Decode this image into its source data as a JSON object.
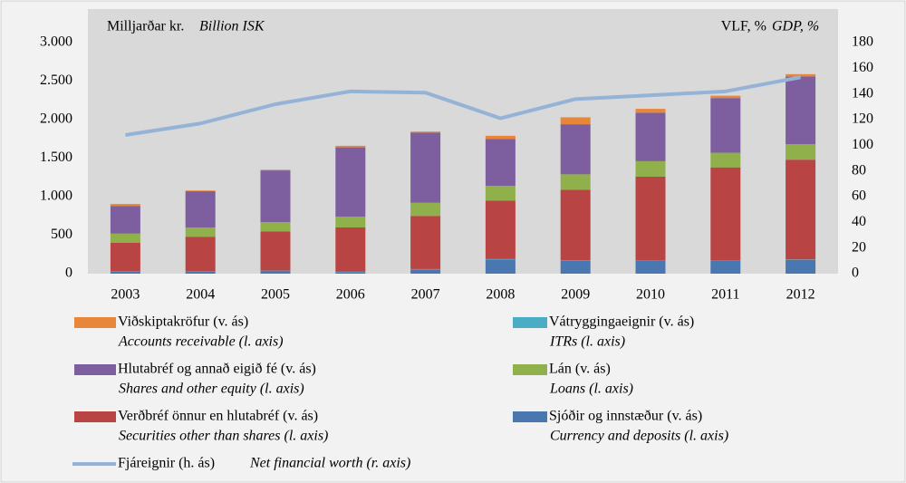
{
  "chart_data": {
    "type": "bar",
    "left_axis_label": "Milljarðar kr.",
    "left_axis_label_en": "Billion ISK",
    "right_axis_label": "VLF, %",
    "right_axis_label_en": "GDP, %",
    "categories": [
      "2003",
      "2004",
      "2005",
      "2006",
      "2007",
      "2008",
      "2009",
      "2010",
      "2011",
      "2012"
    ],
    "stacked": true,
    "series": [
      {
        "name": "Sjóðir og innstæður (v. ás)",
        "name_en": "Currency and deposits (l. axis)",
        "color": "#4a77b0",
        "values": [
          30,
          30,
          35,
          20,
          55,
          185,
          170,
          165,
          165,
          180
        ]
      },
      {
        "name": "Vátryggingaeignir (v. ás)",
        "name_en": "ITRs (l. axis)",
        "color": "#4bacc6",
        "values": [
          5,
          5,
          5,
          5,
          5,
          5,
          5,
          5,
          5,
          5
        ]
      },
      {
        "name": "Verðbréf önnur en hlutabréf (v. ás)",
        "name_en": "Securities other than shares (l. axis)",
        "color": "#b84543",
        "values": [
          365,
          445,
          510,
          575,
          690,
          760,
          915,
          1090,
          1210,
          1295
        ]
      },
      {
        "name": "Lán (v. ás)",
        "name_en": "Loans (l. axis)",
        "color": "#8fb04a",
        "values": [
          120,
          120,
          120,
          140,
          170,
          190,
          200,
          200,
          190,
          200
        ]
      },
      {
        "name": "Hlutabréf og annað eigið fé (v. ás)",
        "name_en": "Shares and other equity (l. axis)",
        "color": "#7d5fa0",
        "values": [
          360,
          470,
          670,
          900,
          910,
          610,
          650,
          630,
          710,
          880
        ]
      },
      {
        "name": "Viðskiptakröfur (v. ás)",
        "name_en": "Accounts receivable (l. axis)",
        "color": "#e8863a",
        "values": [
          25,
          10,
          10,
          20,
          15,
          40,
          90,
          50,
          30,
          30
        ]
      },
      {
        "name": "Fjáreignir (h. ás)",
        "name_en": "Net financial worth (r. axis)",
        "color": "#95b3d7",
        "type": "line",
        "axis": "y2",
        "values": [
          108,
          117,
          132,
          142,
          141,
          121,
          136,
          139,
          142,
          153
        ]
      }
    ],
    "ylim": [
      0,
      3000
    ],
    "yticks": [
      0,
      500,
      {
        "value": 1000,
        "label": "1.000"
      },
      {
        "value": 1500,
        "label": "1.500"
      },
      {
        "value": 2000,
        "label": "2.000"
      },
      {
        "value": 2500,
        "label": "2.500"
      },
      {
        "value": 3000,
        "label": "3.000"
      }
    ],
    "y2lim": [
      0,
      180
    ],
    "y2ticks": [
      0,
      20,
      40,
      60,
      80,
      100,
      120,
      140,
      160,
      180
    ],
    "legend_order": [
      5,
      1,
      4,
      3,
      2,
      0,
      6
    ]
  }
}
